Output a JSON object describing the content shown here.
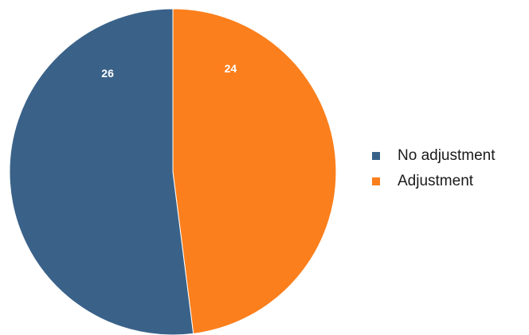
{
  "chart_data": {
    "type": "pie",
    "title": "",
    "slices": [
      {
        "label": "No adjustment",
        "value": 26,
        "color": "#3a6289"
      },
      {
        "label": "Adjustment",
        "value": 24,
        "color": "#fb7f1c"
      }
    ],
    "start_angle": "12 o'clock",
    "direction": "clockwise",
    "data_labels": true,
    "legend": {
      "position": "right",
      "items": [
        "No adjustment",
        "Adjustment"
      ]
    }
  }
}
